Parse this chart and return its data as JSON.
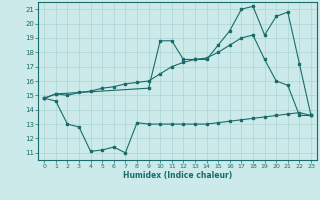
{
  "bg_color": "#cceaea",
  "grid_color": "#aad4d4",
  "line_color": "#1a6b6b",
  "xlabel": "Humidex (Indice chaleur)",
  "xlim": [
    -0.5,
    23.5
  ],
  "ylim": [
    10.5,
    21.5
  ],
  "xticks": [
    0,
    1,
    2,
    3,
    4,
    5,
    6,
    7,
    8,
    9,
    10,
    11,
    12,
    13,
    14,
    15,
    16,
    17,
    18,
    19,
    20,
    21,
    22,
    23
  ],
  "yticks": [
    11,
    12,
    13,
    14,
    15,
    16,
    17,
    18,
    19,
    20,
    21
  ],
  "line1_x": [
    0,
    1,
    2,
    3,
    4,
    5,
    6,
    7,
    8,
    9,
    10,
    11,
    12,
    13,
    14,
    15,
    16,
    17,
    18,
    19,
    20,
    21,
    22,
    23
  ],
  "line1_y": [
    14.8,
    14.6,
    13.0,
    12.8,
    11.1,
    11.2,
    11.4,
    11.0,
    13.1,
    13.0,
    13.0,
    13.0,
    13.0,
    13.0,
    13.0,
    13.1,
    13.2,
    13.3,
    13.4,
    13.5,
    13.6,
    13.7,
    13.8,
    13.6
  ],
  "line2_x": [
    0,
    1,
    9,
    10,
    11,
    12,
    13,
    14,
    15,
    16,
    17,
    18,
    19,
    20,
    21,
    22,
    23
  ],
  "line2_y": [
    14.8,
    15.1,
    15.5,
    18.8,
    18.8,
    17.5,
    17.5,
    17.5,
    18.5,
    19.5,
    21.0,
    21.2,
    19.2,
    20.5,
    20.8,
    17.2,
    13.6
  ],
  "line3_x": [
    0,
    1,
    2,
    3,
    4,
    5,
    6,
    7,
    8,
    9,
    10,
    11,
    12,
    13,
    14,
    15,
    16,
    17,
    18,
    19,
    20,
    21,
    22,
    23
  ],
  "line3_y": [
    14.8,
    15.1,
    15.0,
    15.2,
    15.3,
    15.5,
    15.6,
    15.8,
    15.9,
    16.0,
    16.5,
    17.0,
    17.3,
    17.5,
    17.6,
    18.0,
    18.5,
    19.0,
    19.2,
    17.5,
    16.0,
    15.7,
    13.6,
    13.6
  ]
}
